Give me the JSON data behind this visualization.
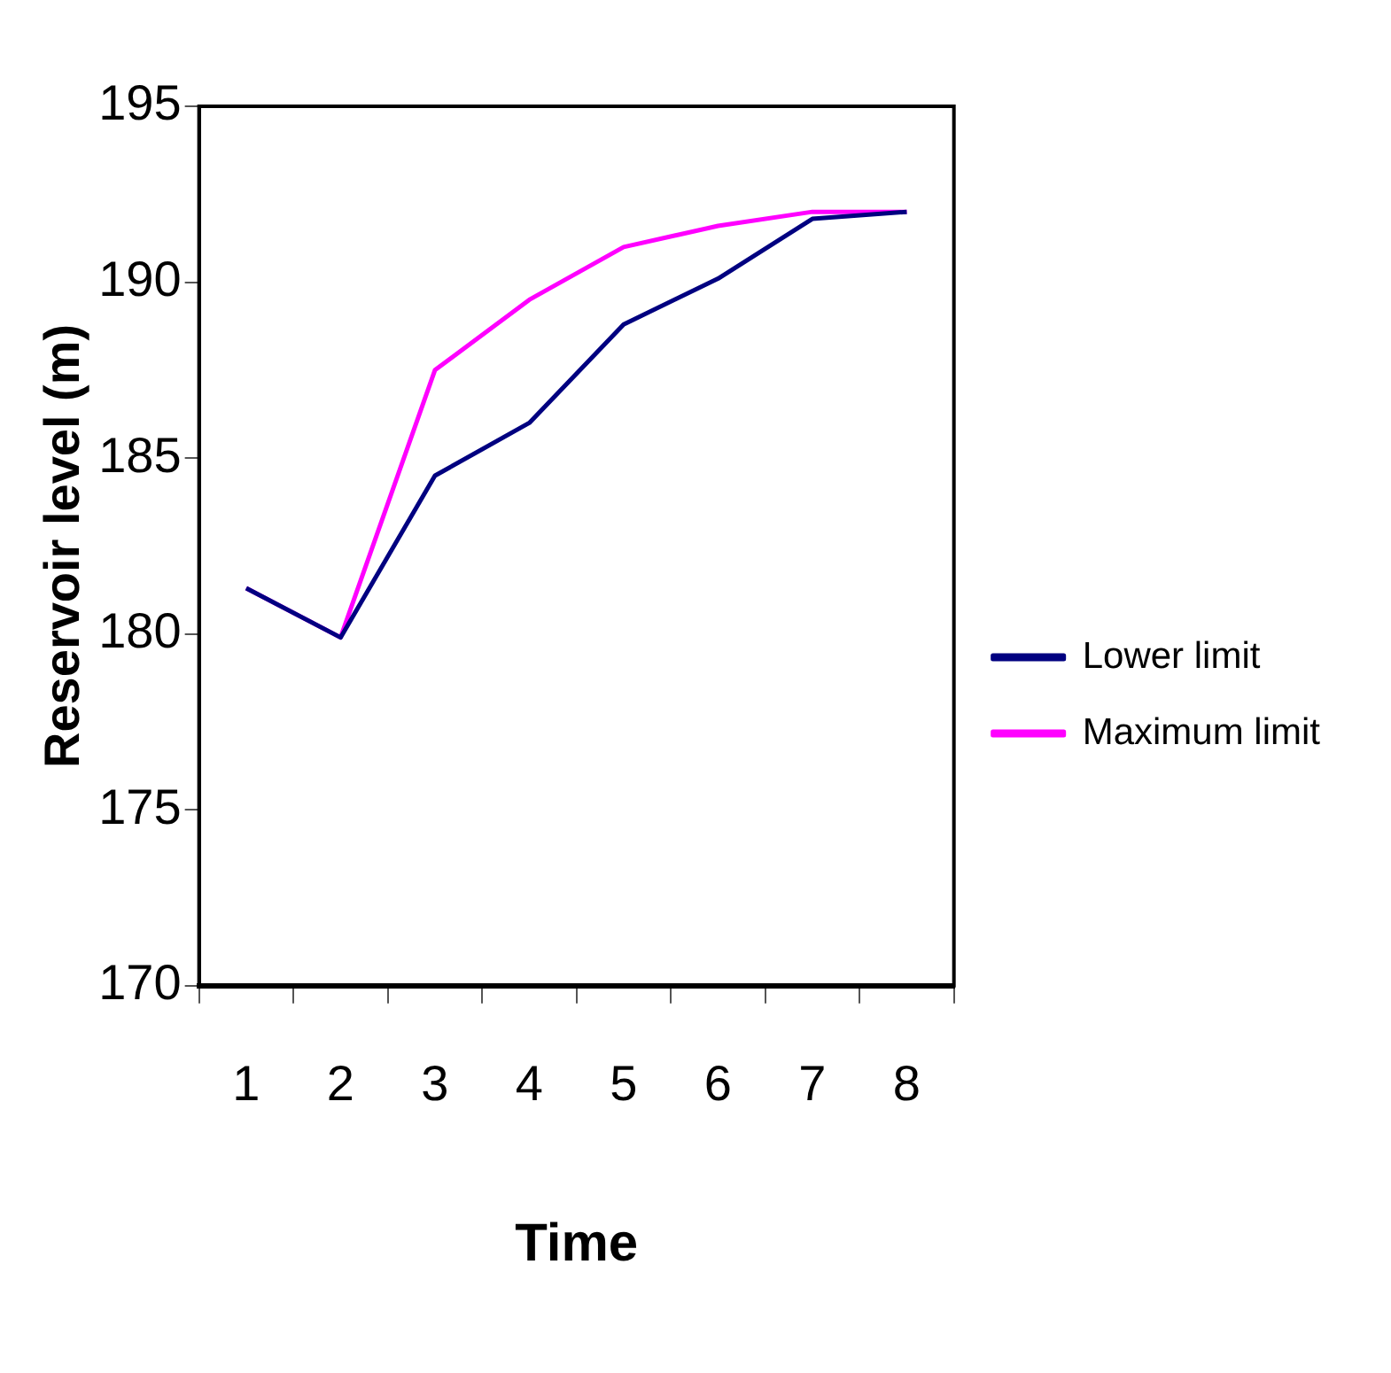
{
  "chart_data": {
    "type": "line",
    "xlabel": "Time",
    "ylabel": "Reservoir level (m)",
    "categories": [
      "1",
      "2",
      "3",
      "4",
      "5",
      "6",
      "7",
      "8"
    ],
    "series": [
      {
        "name": "Lower limit",
        "color": "#000080",
        "values": [
          181.3,
          179.9,
          184.5,
          186.0,
          188.8,
          190.1,
          191.8,
          192.0
        ]
      },
      {
        "name": "Maximum limit",
        "color": "#ff00ff",
        "values": [
          181.3,
          179.9,
          187.5,
          189.5,
          191.0,
          191.6,
          192.0,
          192.0
        ]
      }
    ],
    "ylim": [
      170,
      195
    ],
    "yticks": [
      170,
      175,
      180,
      185,
      190,
      195
    ],
    "grid": false,
    "legend": "right",
    "marker": "none",
    "line_style": "solid"
  }
}
